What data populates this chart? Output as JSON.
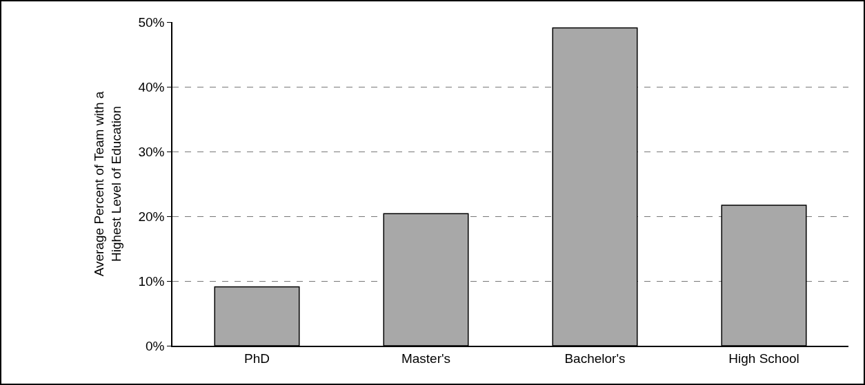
{
  "chart_data": {
    "type": "bar",
    "ylabel": "Average Percent of Team with a\nHighest Level of Education",
    "categories": [
      "PhD",
      "Master's",
      "Bachelor's",
      "High School"
    ],
    "values": [
      9.1,
      20.4,
      49.1,
      21.7
    ],
    "color": "#a8a8a8",
    "ylim": [
      0,
      50
    ],
    "yticks": [
      {
        "value": 0,
        "label": "0%"
      },
      {
        "value": 10,
        "label": "10%"
      },
      {
        "value": 20,
        "label": "20%"
      },
      {
        "value": 30,
        "label": "30%"
      },
      {
        "value": 40,
        "label": "40%"
      },
      {
        "value": 50,
        "label": "50%"
      }
    ],
    "grid": "y",
    "legend": false
  }
}
